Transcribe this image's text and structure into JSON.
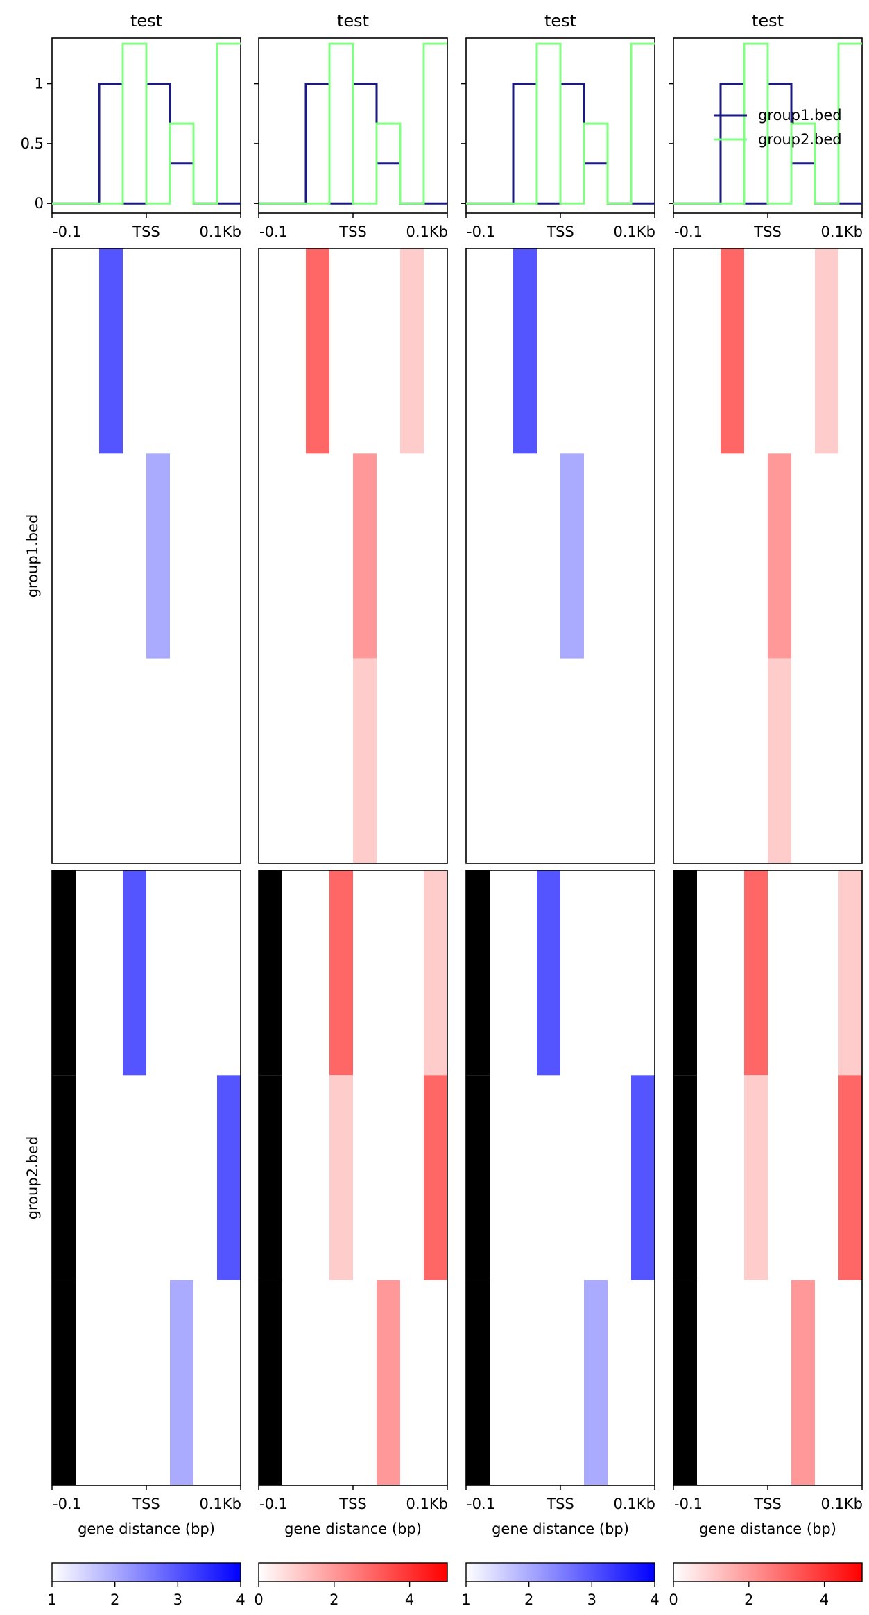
{
  "figure": {
    "title": "test",
    "xlabel": "gene distance (bp)",
    "xticks": [
      "-0.1",
      "TSS",
      "0.1Kb"
    ]
  },
  "chart_data": {
    "type": "heatmap",
    "columns": 4,
    "column_titles": [
      "test",
      "test",
      "test",
      "test"
    ],
    "xticks": [
      "-0.1",
      "TSS",
      "0.1Kb"
    ],
    "xlabel": "gene distance (bp)",
    "bins": 8,
    "groups": [
      {
        "label": "group1.bed",
        "rows": 3
      },
      {
        "label": "group2.bed",
        "rows": 3
      }
    ],
    "profile": {
      "ylim": [
        -0.08,
        1.38
      ],
      "yticks": [
        0.0,
        0.5,
        1.0
      ],
      "legend": "top-right",
      "legend_column": 4,
      "series": [
        {
          "name": "group1.bed",
          "color": "#1a1a80",
          "values": [
            0,
            0,
            1,
            0,
            1,
            0.333,
            0,
            0
          ]
        },
        {
          "name": "group2.bed",
          "color": "#80ff80",
          "values": [
            0,
            0,
            0,
            1.333,
            0,
            0.667,
            0,
            1.333
          ]
        }
      ]
    },
    "colormaps": [
      {
        "name": "blue",
        "color": "#0000ff",
        "min": 1,
        "max": 4,
        "ticks": [
          1,
          2,
          3,
          4
        ],
        "nan_color": "#000000"
      },
      {
        "name": "red",
        "color": "#ff0000",
        "min": 0,
        "max": 5,
        "ticks": [
          0,
          2,
          4
        ],
        "nan_color": "#000000"
      }
    ],
    "column_colormaps": [
      "blue",
      "red",
      "blue",
      "red"
    ],
    "matrices": {
      "blue": [
        [
          null,
          null,
          3,
          null,
          null,
          null,
          null,
          null
        ],
        [
          null,
          null,
          null,
          null,
          2,
          null,
          null,
          null
        ],
        [
          null,
          null,
          null,
          null,
          null,
          null,
          null,
          null
        ],
        [
          "nan",
          null,
          null,
          3,
          null,
          null,
          null,
          null
        ],
        [
          "nan",
          null,
          null,
          null,
          null,
          null,
          null,
          3
        ],
        [
          "nan",
          null,
          null,
          null,
          null,
          2,
          null,
          null
        ]
      ],
      "red": [
        [
          null,
          null,
          3,
          null,
          null,
          null,
          1,
          null
        ],
        [
          null,
          null,
          null,
          null,
          2,
          null,
          null,
          null
        ],
        [
          null,
          null,
          null,
          null,
          1,
          null,
          null,
          null
        ],
        [
          "nan",
          null,
          null,
          3,
          null,
          null,
          null,
          1
        ],
        [
          "nan",
          null,
          null,
          1,
          null,
          null,
          null,
          3
        ],
        [
          "nan",
          null,
          null,
          null,
          null,
          2,
          null,
          null
        ]
      ]
    }
  }
}
